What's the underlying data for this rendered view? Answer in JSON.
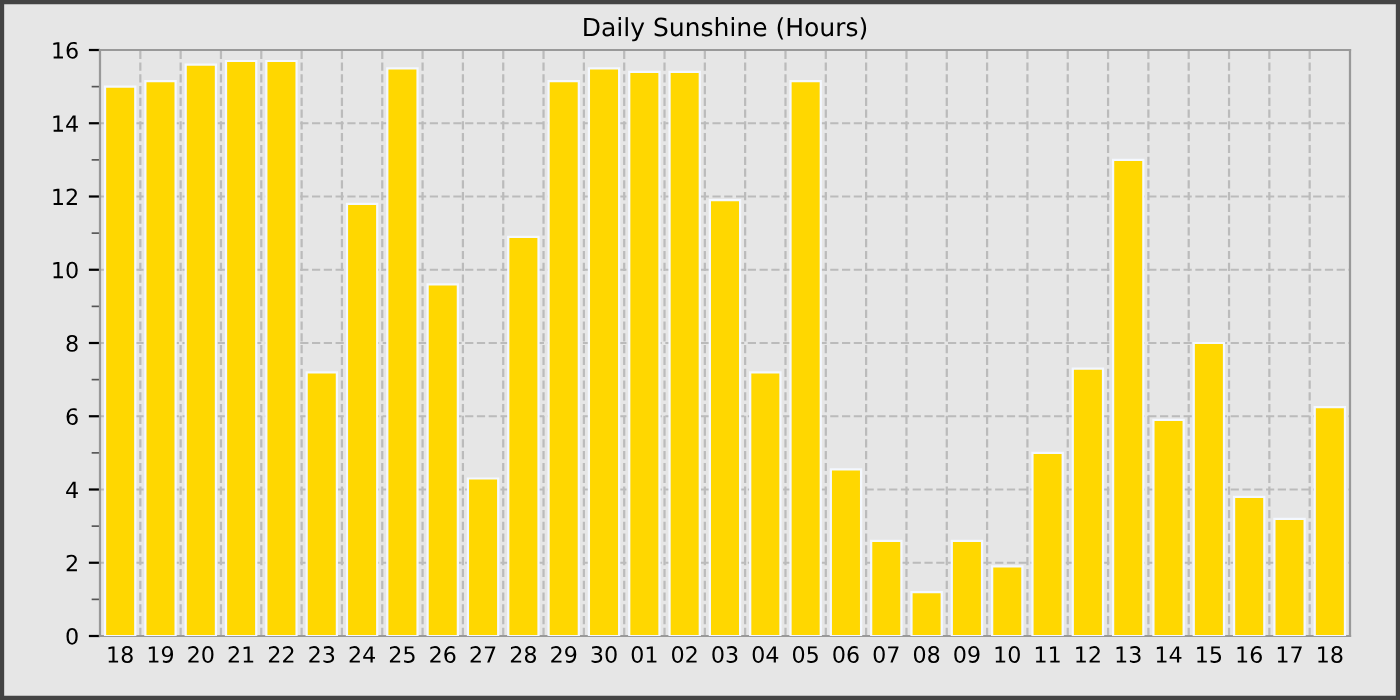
{
  "chart_data": {
    "type": "bar",
    "title": "Daily Sunshine (Hours)",
    "categories": [
      "18",
      "19",
      "20",
      "21",
      "22",
      "23",
      "24",
      "25",
      "26",
      "27",
      "28",
      "29",
      "30",
      "01",
      "02",
      "03",
      "04",
      "05",
      "06",
      "07",
      "08",
      "09",
      "10",
      "11",
      "12",
      "13",
      "14",
      "15",
      "16",
      "17",
      "18"
    ],
    "values": [
      15.0,
      15.15,
      15.6,
      15.7,
      15.7,
      7.2,
      11.8,
      15.5,
      9.6,
      4.3,
      10.9,
      15.15,
      15.5,
      15.4,
      15.4,
      11.9,
      7.2,
      15.15,
      4.55,
      2.6,
      1.2,
      2.6,
      1.9,
      5.0,
      7.3,
      13.0,
      5.9,
      8.0,
      3.8,
      3.2,
      6.25
    ],
    "color": "#ffd700",
    "ylim": [
      0,
      16
    ],
    "yticks": [
      0,
      2,
      4,
      6,
      8,
      10,
      12,
      14,
      16
    ],
    "grid": true
  }
}
